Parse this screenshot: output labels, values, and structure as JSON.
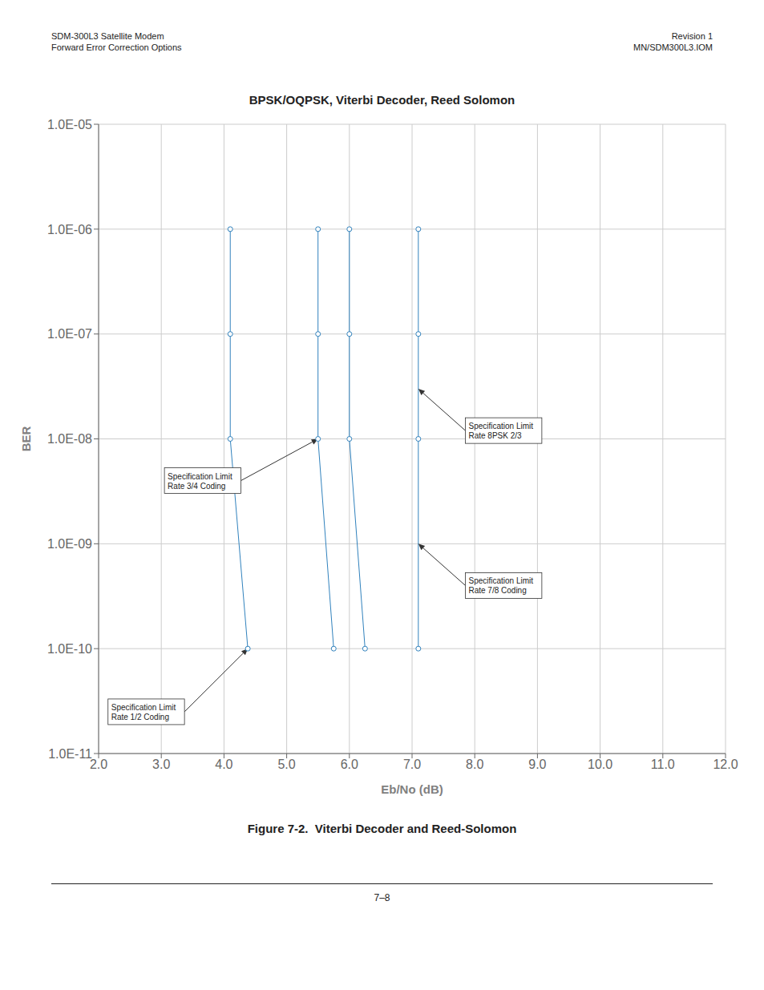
{
  "chart_data": {
    "type": "line",
    "title": "BPSK/OQPSK, Viterbi Decoder, Reed Solomon",
    "x_label": "Eb/No (dB)",
    "y_label": "BER",
    "log": "y",
    "grid": true,
    "marker": "circle",
    "xlim": [
      2.0,
      12.0
    ],
    "ylim": [
      1e-11,
      1e-05
    ],
    "xticks": [
      {
        "value": 2.0,
        "label": "2.0"
      },
      {
        "value": 3.0,
        "label": "3.0"
      },
      {
        "value": 4.0,
        "label": "4.0"
      },
      {
        "value": 5.0,
        "label": "5.0"
      },
      {
        "value": 6.0,
        "label": "6.0"
      },
      {
        "value": 7.0,
        "label": "7.0"
      },
      {
        "value": 8.0,
        "label": "8.0"
      },
      {
        "value": 9.0,
        "label": "9.0"
      },
      {
        "value": 10.0,
        "label": "10.0"
      },
      {
        "value": 11.0,
        "label": "11.0"
      },
      {
        "value": 12.0,
        "label": "12.0"
      }
    ],
    "yticks": [
      {
        "value": 1e-05,
        "label": "1.0E-05"
      },
      {
        "value": 1e-06,
        "label": "1.0E-06"
      },
      {
        "value": 1e-07,
        "label": "1.0E-07"
      },
      {
        "value": 1e-08,
        "label": "1.0E-08"
      },
      {
        "value": 1e-09,
        "label": "1.0E-09"
      },
      {
        "value": 1e-10,
        "label": "1.0E-10"
      },
      {
        "value": 1e-11,
        "label": "1.0E-11"
      }
    ],
    "series": [
      {
        "x": [
          4.1,
          4.1,
          4.1,
          4.38
        ],
        "values": [
          1e-06,
          1e-07,
          1e-08,
          1e-10
        ]
      },
      {
        "x": [
          5.5,
          5.5,
          5.5,
          5.75
        ],
        "values": [
          1e-06,
          1e-07,
          1e-08,
          1e-10
        ]
      },
      {
        "x": [
          6.0,
          6.0,
          6.0,
          6.25
        ],
        "values": [
          1e-06,
          1e-07,
          1e-08,
          1e-10
        ]
      },
      {
        "x": [
          7.1,
          7.1,
          7.1,
          7.1
        ],
        "values": [
          1e-06,
          1e-07,
          1e-08,
          1e-10
        ]
      }
    ],
    "annotations": [
      {
        "text": "Specification Limit\nRate 3/4 Coding",
        "xy": [
          5.5,
          1e-08
        ],
        "xytext": [
          3.05,
          4e-09
        ]
      },
      {
        "text": "Specification Limit\nRate 1/2 Coding",
        "xy": [
          4.38,
          1e-10
        ],
        "xytext": [
          2.15,
          2.5e-11
        ]
      },
      {
        "text": "Specification Limit\nRate 8PSK 2/3",
        "xy": [
          7.1,
          3e-08
        ],
        "xytext": [
          7.85,
          1.2e-08
        ]
      },
      {
        "text": "Specification Limit\nRate 7/8 Coding",
        "xy": [
          7.1,
          1e-09
        ],
        "xytext": [
          7.85,
          4e-10
        ]
      }
    ],
    "header_left": [
      "SDM-300L3 Satellite Modem",
      "Forward Error Correction Options"
    ],
    "header_right": [
      "Revision 1",
      "MN/SDM300L3.IOM"
    ],
    "caption": "Figure 7-2.  Viterbi Decoder and Reed-Solomon",
    "footer": "7–8"
  }
}
